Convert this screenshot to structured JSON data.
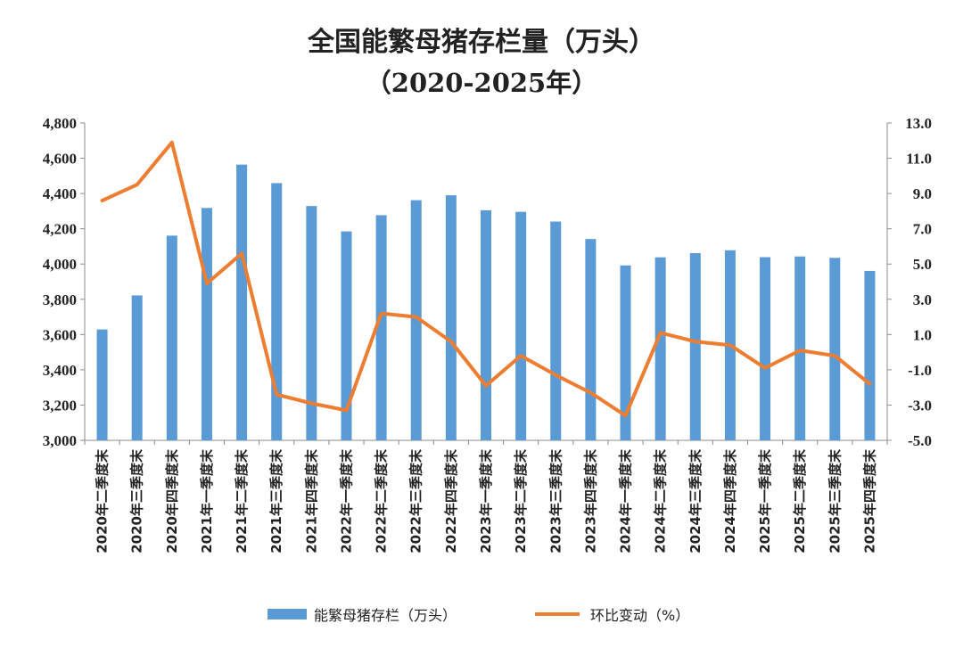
{
  "chart_data": {
    "type": "bar",
    "title": "全国能繁母猪存栏量（万头）",
    "subtitle": "（2020-2025年）",
    "categories": [
      "2020年二季度末",
      "2020年三季度末",
      "2020年四季度末",
      "2021年一季度末",
      "2021年二季度末",
      "2021年三季度末",
      "2021年四季度末",
      "2022年一季度末",
      "2022年二季度末",
      "2022年三季度末",
      "2022年四季度末",
      "2023年一季度末",
      "2023年二季度末",
      "2023年三季度末",
      "2023年四季度末",
      "2024年一季度末",
      "2024年二季度末",
      "2024年三季度末",
      "2024年四季度末",
      "2025年一季度末",
      "2025年二季度末",
      "2025年三季度末",
      "2025年四季度末"
    ],
    "series": [
      {
        "name": "能繁母猪存栏（万头）",
        "type": "bar",
        "axis": "left",
        "color": "#5b9bd5",
        "values": [
          3629,
          3822,
          4161,
          4318,
          4564,
          4459,
          4329,
          4185,
          4277,
          4362,
          4390,
          4305,
          4296,
          4241,
          4142,
          3992,
          4038,
          4062,
          4078,
          4039,
          4043,
          4035,
          3961
        ]
      },
      {
        "name": "环比变动（%）",
        "type": "line",
        "axis": "right",
        "color": "#ed7d31",
        "values": [
          8.6,
          9.5,
          11.9,
          3.9,
          5.6,
          -2.4,
          -2.9,
          -3.3,
          2.2,
          2.0,
          0.6,
          -1.9,
          -0.2,
          -1.3,
          -2.3,
          -3.6,
          1.1,
          0.6,
          0.4,
          -0.9,
          0.1,
          -0.2,
          -1.8
        ]
      }
    ],
    "y_left": {
      "min": 3000,
      "max": 4800,
      "ticks": [
        "3,000",
        "3,200",
        "3,400",
        "3,600",
        "3,800",
        "4,000",
        "4,200",
        "4,400",
        "4,600",
        "4,800"
      ]
    },
    "y_right": {
      "min": -5.0,
      "max": 13.0,
      "ticks": [
        "-5.0",
        "-3.0",
        "-1.0",
        "1.0",
        "3.0",
        "5.0",
        "7.0",
        "9.0",
        "11.0",
        "13.0"
      ]
    },
    "grid": false,
    "legend": "bottom"
  }
}
